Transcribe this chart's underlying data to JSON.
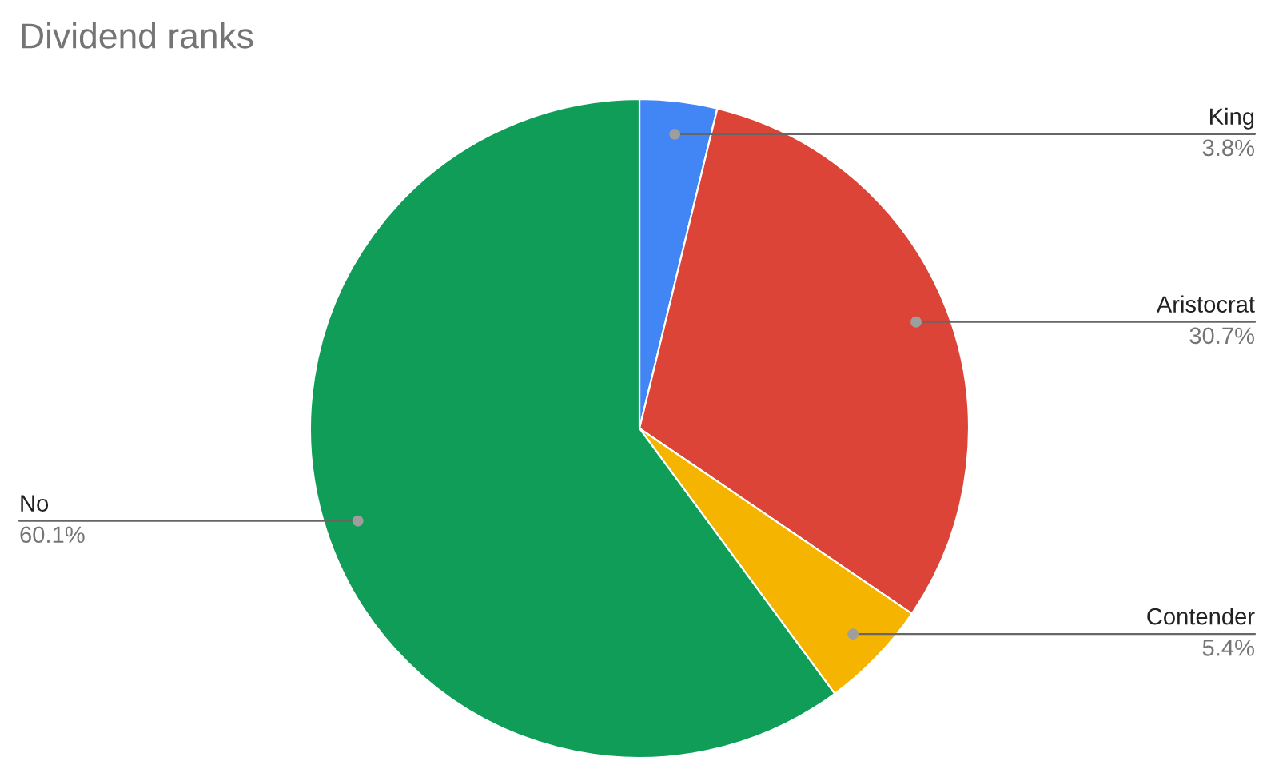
{
  "chart_data": {
    "type": "pie",
    "title": "Dividend ranks",
    "categories": [
      "King",
      "Aristocrat",
      "Contender",
      "No"
    ],
    "values": [
      3.8,
      30.7,
      5.4,
      60.1
    ],
    "value_labels": [
      "3.8%",
      "30.7%",
      "5.4%",
      "60.1%"
    ],
    "colors": [
      "#4285f4",
      "#db4437",
      "#f4b400",
      "#0f9d58"
    ],
    "legend": false
  }
}
